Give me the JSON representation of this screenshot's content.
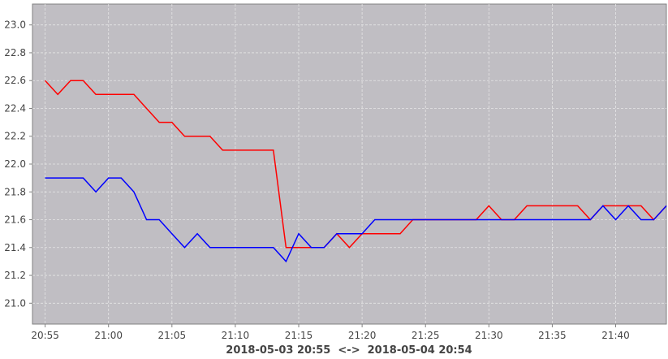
{
  "chart_data": {
    "type": "line",
    "xlabel": "2018-05-03 20:55  <->  2018-05-04 20:54",
    "ylabel": "",
    "xlim": [
      "20:54",
      "21:44"
    ],
    "ylim": [
      20.85,
      23.15
    ],
    "grid": true,
    "colors": {
      "plot_background": "#c0bec3",
      "grid": "#e6e6e6",
      "red": "#ff0000",
      "blue": "#0000ff"
    },
    "x_ticks": [
      "20:55",
      "21:00",
      "21:05",
      "21:10",
      "21:15",
      "21:20",
      "21:25",
      "21:30",
      "21:35",
      "21:40"
    ],
    "y_ticks": [
      "21.0",
      "21.2",
      "21.4",
      "21.6",
      "21.8",
      "22.0",
      "22.2",
      "22.4",
      "22.6",
      "22.8",
      "23.0"
    ],
    "series": [
      {
        "color": "#ff0000",
        "points": [
          [
            "20:55",
            22.6
          ],
          [
            "20:56",
            22.5
          ],
          [
            "20:57",
            22.6
          ],
          [
            "20:58",
            22.6
          ],
          [
            "20:59",
            22.5
          ],
          [
            "21:00",
            22.5
          ],
          [
            "21:01",
            22.5
          ],
          [
            "21:02",
            22.5
          ],
          [
            "21:03",
            22.4
          ],
          [
            "21:04",
            22.3
          ],
          [
            "21:05",
            22.3
          ],
          [
            "21:06",
            22.2
          ],
          [
            "21:07",
            22.2
          ],
          [
            "21:08",
            22.2
          ],
          [
            "21:09",
            22.1
          ],
          [
            "21:10",
            22.1
          ],
          [
            "21:11",
            22.1
          ],
          [
            "21:12",
            22.1
          ],
          [
            "21:13",
            22.1
          ],
          [
            "21:14",
            21.4
          ],
          [
            "21:15",
            21.4
          ],
          [
            "21:16",
            21.4
          ],
          [
            "21:17",
            21.4
          ],
          [
            "21:18",
            21.5
          ],
          [
            "21:19",
            21.4
          ],
          [
            "21:20",
            21.5
          ],
          [
            "21:21",
            21.5
          ],
          [
            "21:22",
            21.5
          ],
          [
            "21:23",
            21.5
          ],
          [
            "21:24",
            21.6
          ],
          [
            "21:25",
            21.6
          ],
          [
            "21:26",
            21.6
          ],
          [
            "21:27",
            21.6
          ],
          [
            "21:28",
            21.6
          ],
          [
            "21:29",
            21.6
          ],
          [
            "21:30",
            21.7
          ],
          [
            "21:31",
            21.6
          ],
          [
            "21:32",
            21.6
          ],
          [
            "21:33",
            21.7
          ],
          [
            "21:34",
            21.7
          ],
          [
            "21:35",
            21.7
          ],
          [
            "21:36",
            21.7
          ],
          [
            "21:37",
            21.7
          ],
          [
            "21:38",
            21.6
          ],
          [
            "21:39",
            21.7
          ],
          [
            "21:40",
            21.7
          ],
          [
            "21:41",
            21.7
          ],
          [
            "21:42",
            21.7
          ],
          [
            "21:43",
            21.6
          ],
          [
            "21:44",
            21.7
          ]
        ]
      },
      {
        "color": "#0000ff",
        "points": [
          [
            "20:55",
            21.9
          ],
          [
            "20:56",
            21.9
          ],
          [
            "20:57",
            21.9
          ],
          [
            "20:58",
            21.9
          ],
          [
            "20:59",
            21.8
          ],
          [
            "21:00",
            21.9
          ],
          [
            "21:01",
            21.9
          ],
          [
            "21:02",
            21.8
          ],
          [
            "21:03",
            21.6
          ],
          [
            "21:04",
            21.6
          ],
          [
            "21:05",
            21.5
          ],
          [
            "21:06",
            21.4
          ],
          [
            "21:07",
            21.5
          ],
          [
            "21:08",
            21.4
          ],
          [
            "21:09",
            21.4
          ],
          [
            "21:10",
            21.4
          ],
          [
            "21:11",
            21.4
          ],
          [
            "21:12",
            21.4
          ],
          [
            "21:13",
            21.4
          ],
          [
            "21:14",
            21.3
          ],
          [
            "21:15",
            21.5
          ],
          [
            "21:16",
            21.4
          ],
          [
            "21:17",
            21.4
          ],
          [
            "21:18",
            21.5
          ],
          [
            "21:19",
            21.5
          ],
          [
            "21:20",
            21.5
          ],
          [
            "21:21",
            21.6
          ],
          [
            "21:22",
            21.6
          ],
          [
            "21:23",
            21.6
          ],
          [
            "21:24",
            21.6
          ],
          [
            "21:25",
            21.6
          ],
          [
            "21:26",
            21.6
          ],
          [
            "21:27",
            21.6
          ],
          [
            "21:28",
            21.6
          ],
          [
            "21:29",
            21.6
          ],
          [
            "21:30",
            21.6
          ],
          [
            "21:31",
            21.6
          ],
          [
            "21:32",
            21.6
          ],
          [
            "21:33",
            21.6
          ],
          [
            "21:34",
            21.6
          ],
          [
            "21:35",
            21.6
          ],
          [
            "21:36",
            21.6
          ],
          [
            "21:37",
            21.6
          ],
          [
            "21:38",
            21.6
          ],
          [
            "21:39",
            21.7
          ],
          [
            "21:40",
            21.6
          ],
          [
            "21:41",
            21.7
          ],
          [
            "21:42",
            21.6
          ],
          [
            "21:43",
            21.6
          ],
          [
            "21:44",
            21.7
          ]
        ]
      }
    ]
  }
}
